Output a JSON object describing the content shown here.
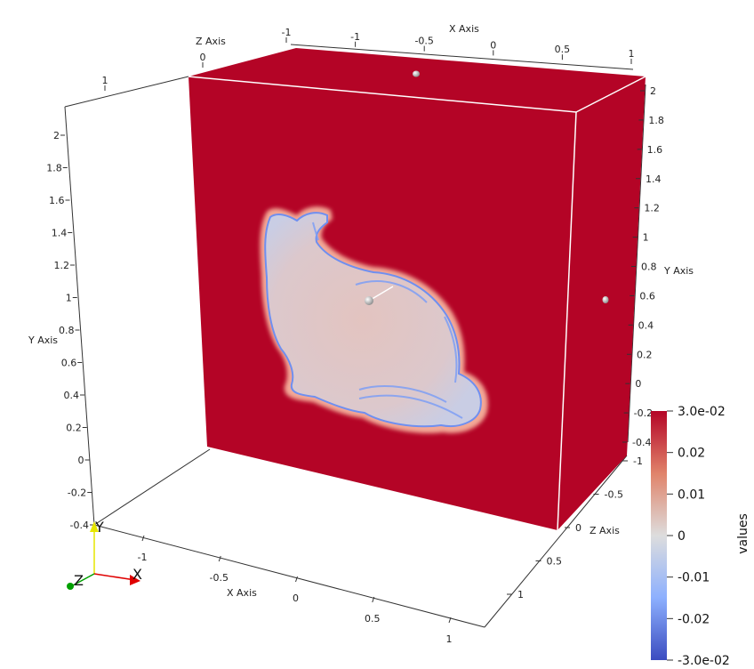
{
  "viewport": {
    "background": "#ffffff",
    "slice_color": "#b40426"
  },
  "axes": {
    "x_axis_label": "X Axis",
    "y_axis_label": "Y Axis",
    "z_axis_label": "Z Axis",
    "bottom_x_ticks": [
      "-1",
      "-0.5",
      "0",
      "0.5",
      "1"
    ],
    "top_x_ticks": [
      "-1",
      "-1",
      "-0.5",
      "0",
      "0.5",
      "1"
    ],
    "left_y_ticks": [
      "2",
      "1.8",
      "1.6",
      "1.4",
      "1.2",
      "1",
      "0.8",
      "0.6",
      "0.4",
      "0.2",
      "0",
      "-0.2",
      "-0.4"
    ],
    "right_y_ticks": [
      "2",
      "1.8",
      "1.6",
      "1.4",
      "1.2",
      "1",
      "0.8",
      "0.6",
      "0.4",
      "0.2",
      "0",
      "-0.2",
      "-0.4"
    ],
    "right_z_ticks": [
      "-1",
      "-0.5",
      "0",
      "0.5",
      "1"
    ],
    "top_z_ticks": [
      "0",
      "1"
    ]
  },
  "orientation": {
    "x": "X",
    "y": "Y",
    "z": "Z",
    "x_color": "#e00000",
    "y_color": "#e6e600",
    "z_color": "#00a000"
  },
  "colorbar": {
    "title": "values",
    "labels": [
      "3.0e-02",
      "0.02",
      "0.01",
      "0",
      "-0.01",
      "-0.02",
      "-3.0e-02"
    ],
    "colors": [
      "#b40426",
      "#e0836a",
      "#dddddd",
      "#8db0fe",
      "#3b4cc0"
    ]
  }
}
